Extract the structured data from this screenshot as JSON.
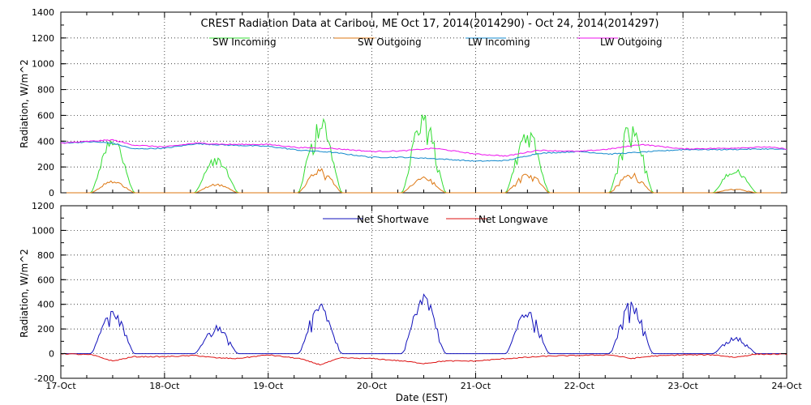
{
  "chart_data": [
    {
      "type": "line",
      "title": "CREST Radiation Data at Caribou, ME   Oct 17, 2014(2014290) - Oct 24, 2014(2014297)",
      "ylabel": "Radiation, W/m^2",
      "xlabel": "",
      "x_ticks": [
        "17-Oct",
        "18-Oct",
        "19-Oct",
        "20-Oct",
        "21-Oct",
        "22-Oct",
        "23-Oct",
        "24-Oct"
      ],
      "xlim": [
        "2014-10-17",
        "2014-10-24"
      ],
      "ylim": [
        0,
        1400
      ],
      "y_ticks": [
        0,
        200,
        400,
        600,
        800,
        1000,
        1200,
        1400
      ],
      "grid": true,
      "legend_position": "top",
      "series": [
        {
          "name": "SW Incoming",
          "color": "#33dd33",
          "day_peaks": [
            440,
            280,
            600,
            640,
            510,
            570,
            195,
            0
          ],
          "night_value": 0
        },
        {
          "name": "SW Outgoing",
          "color": "#dd7711",
          "day_peaks": [
            95,
            70,
            190,
            130,
            170,
            160,
            30,
            0
          ],
          "night_value": 0
        },
        {
          "name": "LW Incoming",
          "color": "#1188cc",
          "x_days": [
            0,
            0.3,
            0.5,
            0.7,
            1.0,
            1.3,
            1.6,
            2.0,
            2.3,
            2.6,
            3.0,
            3.3,
            3.6,
            4.0,
            4.3,
            4.6,
            5.0,
            5.3,
            5.6,
            6.0,
            6.4,
            6.8,
            7.0
          ],
          "values": [
            385,
            395,
            385,
            340,
            345,
            380,
            370,
            360,
            330,
            315,
            275,
            275,
            265,
            245,
            250,
            305,
            320,
            300,
            315,
            335,
            335,
            340,
            335
          ]
        },
        {
          "name": "LW Outgoing",
          "color": "#ee11ee",
          "x_days": [
            0,
            0.3,
            0.5,
            0.7,
            1.0,
            1.3,
            1.6,
            2.0,
            2.3,
            2.6,
            3.0,
            3.3,
            3.6,
            4.0,
            4.3,
            4.6,
            5.0,
            5.3,
            5.6,
            6.0,
            6.4,
            6.8,
            7.0
          ],
          "values": [
            385,
            400,
            410,
            370,
            355,
            385,
            375,
            375,
            350,
            345,
            320,
            325,
            345,
            300,
            285,
            330,
            320,
            340,
            375,
            340,
            345,
            355,
            340
          ]
        }
      ]
    },
    {
      "type": "line",
      "title": "",
      "ylabel": "Radiation, W/m^2",
      "xlabel": "Date (EST)",
      "x_ticks": [
        "17-Oct",
        "18-Oct",
        "19-Oct",
        "20-Oct",
        "21-Oct",
        "22-Oct",
        "23-Oct",
        "24-Oct"
      ],
      "xlim": [
        "2014-10-17",
        "2014-10-24"
      ],
      "ylim": [
        -200,
        1200
      ],
      "y_ticks": [
        -200,
        0,
        200,
        400,
        600,
        800,
        1000,
        1200
      ],
      "grid": true,
      "legend_position": "top",
      "series": [
        {
          "name": "Net Shortwave",
          "color": "#1111bb",
          "day_peaks": [
            360,
            230,
            420,
            490,
            370,
            430,
            140,
            0
          ],
          "night_value": 0
        },
        {
          "name": "Net Longwave",
          "color": "#dd1111",
          "x_days": [
            0,
            0.3,
            0.5,
            0.7,
            1.0,
            1.3,
            1.5,
            1.7,
            2.0,
            2.3,
            2.5,
            2.7,
            3.0,
            3.3,
            3.5,
            3.7,
            4.0,
            4.3,
            4.5,
            4.7,
            5.0,
            5.3,
            5.5,
            5.7,
            6.0,
            6.3,
            6.5,
            6.7,
            7.0
          ],
          "values": [
            0,
            -10,
            -60,
            -25,
            -25,
            -15,
            -35,
            -40,
            -10,
            -40,
            -90,
            -35,
            -40,
            -60,
            -80,
            -60,
            -60,
            -40,
            -30,
            -20,
            -15,
            -10,
            -40,
            -20,
            -10,
            -10,
            -30,
            -5,
            -5
          ]
        }
      ]
    }
  ]
}
